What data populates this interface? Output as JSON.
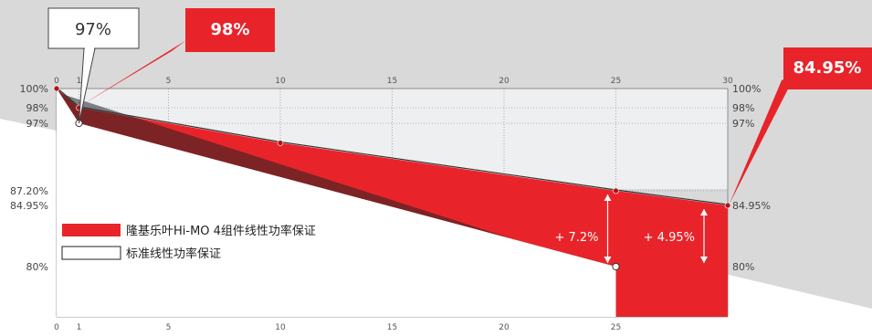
{
  "chart_data": {
    "type": "area",
    "title": "",
    "xlabel": "",
    "ylabel": "",
    "xlim": [
      0,
      30
    ],
    "ylim": [
      80,
      100
    ],
    "x_ticks_top": [
      "0",
      "1",
      "5",
      "10",
      "15",
      "20",
      "25",
      "30"
    ],
    "x_ticks_bottom": [
      "0",
      "1",
      "5",
      "10",
      "15",
      "20",
      "25"
    ],
    "y_ticks_left": [
      "100%",
      "98%",
      "97%",
      "87.20%",
      "84.95%",
      "80%"
    ],
    "y_ticks_right": [
      "100%",
      "98%",
      "97%",
      "84.95%",
      "80%"
    ],
    "series": [
      {
        "name": "隆基乐叶Hi-MO 4组件线性功率保证",
        "color": "#e8242a",
        "x": [
          0,
          1,
          10,
          25,
          30
        ],
        "y": [
          100,
          98,
          93.9,
          87.2,
          84.95
        ]
      },
      {
        "name": "标准线性功率保证",
        "color": "#ffffff",
        "x": [
          0,
          1,
          25
        ],
        "y": [
          100,
          97,
          80
        ]
      }
    ],
    "annotations": [
      {
        "text": "+ 7.2%",
        "x": 25,
        "from": 80,
        "to": 87.2
      },
      {
        "text": "+ 4.95%",
        "x": 30,
        "from": 80,
        "to": 84.95
      }
    ],
    "callouts": [
      {
        "text": "97%",
        "style": "white",
        "x": 1,
        "y": 97
      },
      {
        "text": "98%",
        "style": "red",
        "x": 1,
        "y": 98
      },
      {
        "text": "84.95%",
        "style": "red",
        "x": 30,
        "y": 84.95
      }
    ],
    "legend": "bottom-left",
    "grid": true
  },
  "colors": {
    "red": "#e8242a",
    "background_gray": "#d9d9d9",
    "plot_gray": "#eeeff1",
    "shadow": "#222222"
  }
}
